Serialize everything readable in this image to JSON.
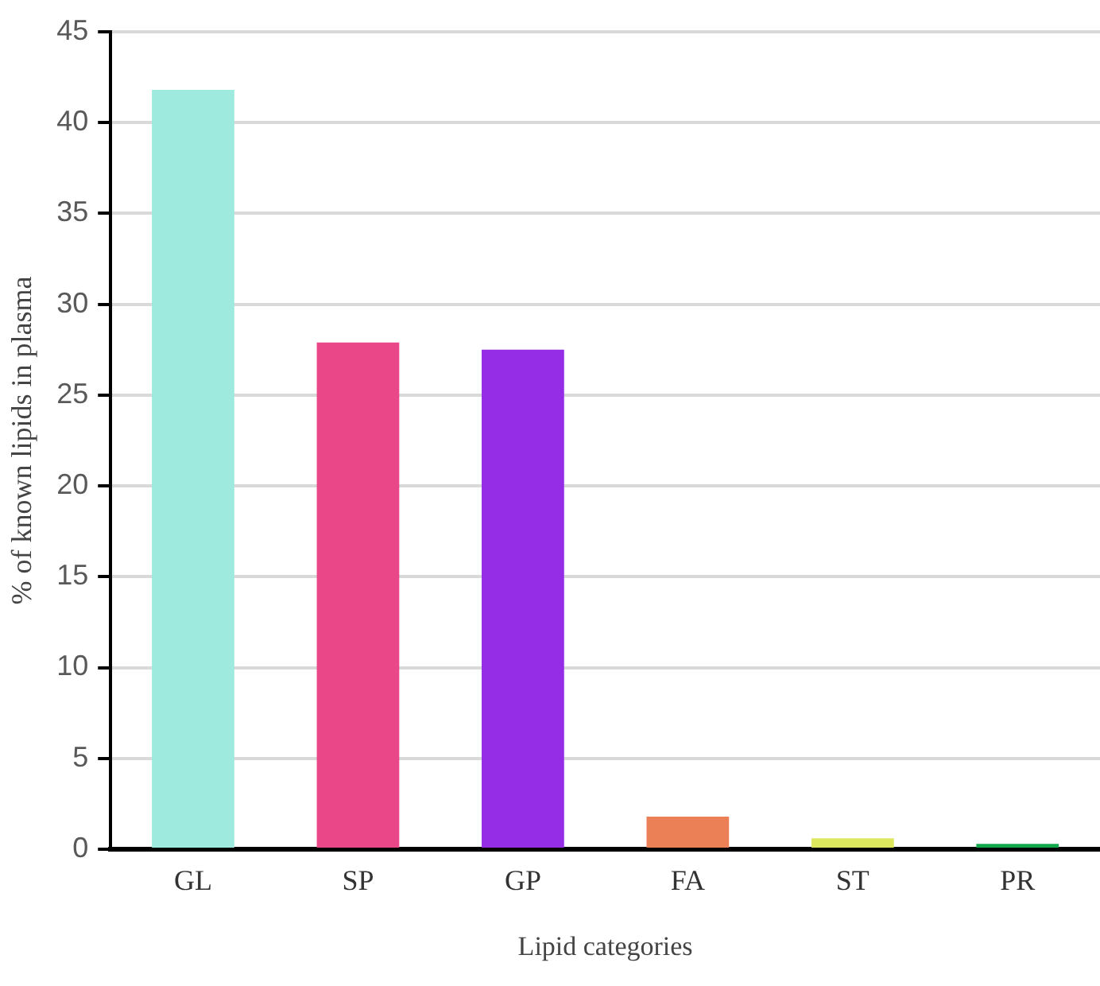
{
  "chart_data": {
    "type": "bar",
    "xlabel": "Lipid categories",
    "ylabel": "% of known lipids in plasma",
    "categories": [
      "GL",
      "SP",
      "GP",
      "FA",
      "ST",
      "PR"
    ],
    "values": [
      41.8,
      27.9,
      27.5,
      1.8,
      0.6,
      0.3
    ],
    "colors": [
      "#9eeade",
      "#ea4789",
      "#952de6",
      "#eb7f55",
      "#dde85e",
      "#10a84a"
    ],
    "ylim": [
      0,
      45
    ],
    "yticks": [
      0,
      5,
      10,
      15,
      20,
      25,
      30,
      35,
      40,
      45
    ],
    "grid": "y",
    "legend": false
  }
}
